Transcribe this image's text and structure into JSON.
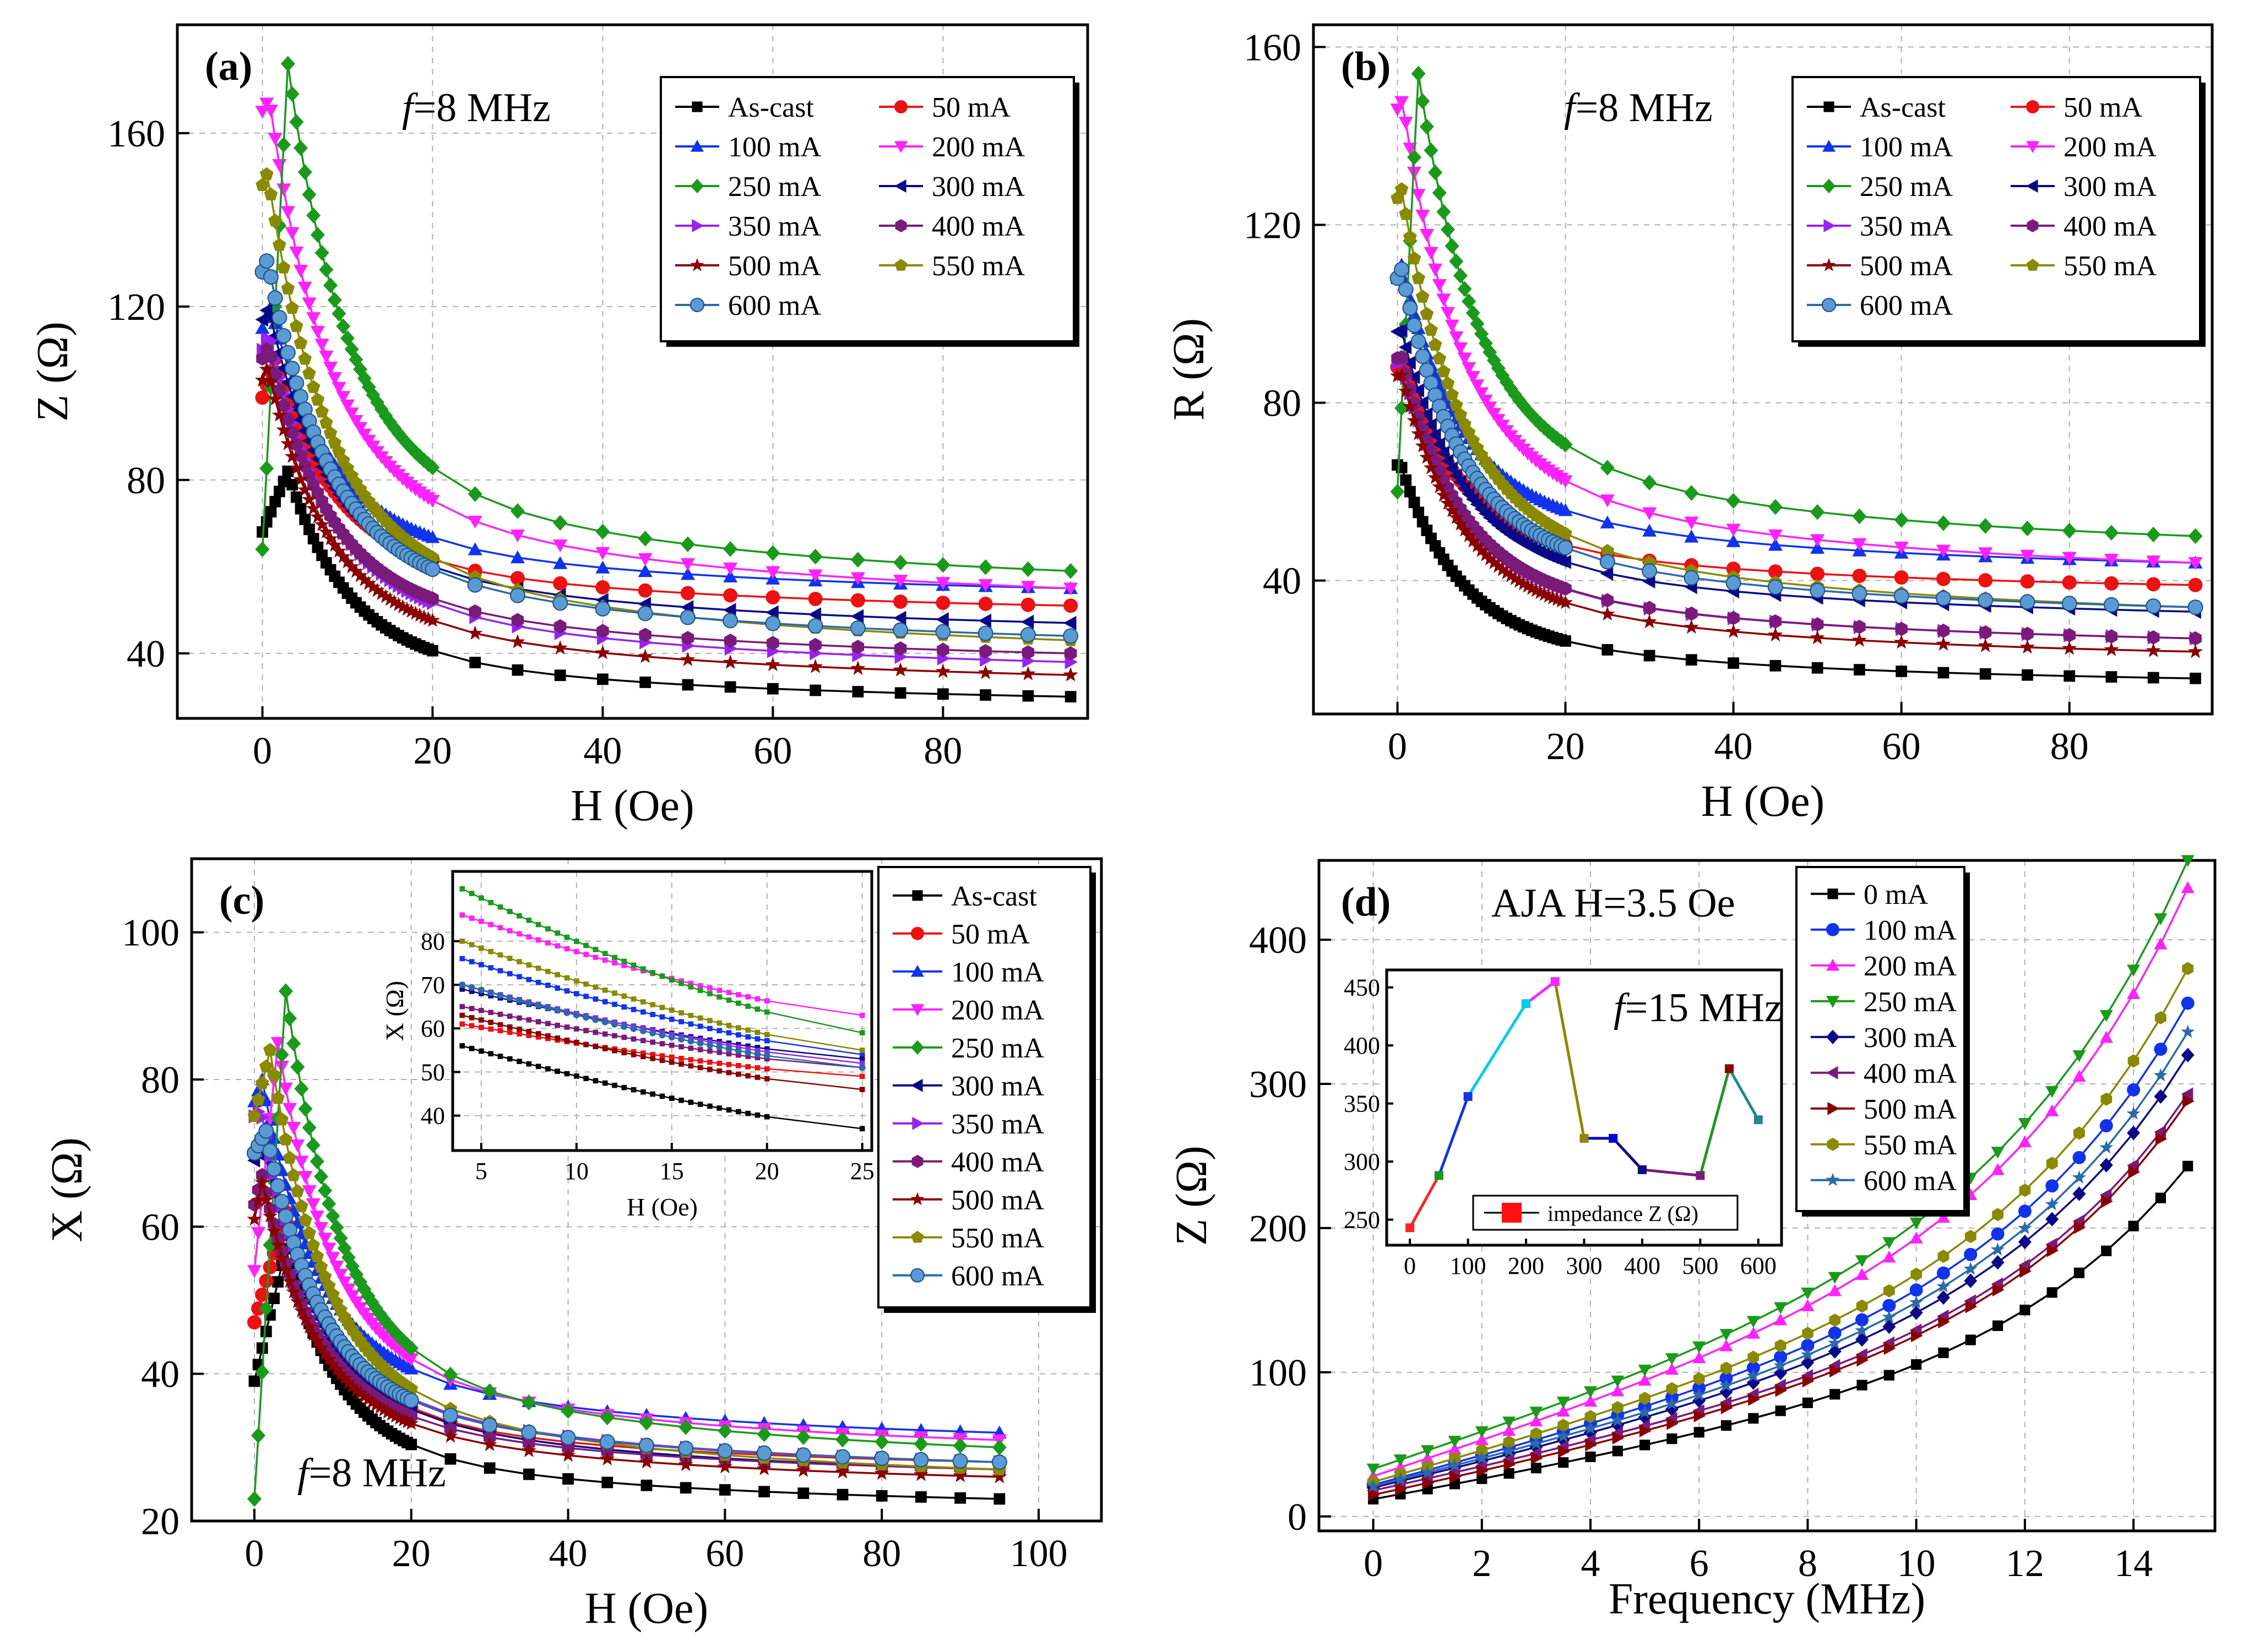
{
  "palette": {
    "As-cast": "#000000",
    "0 mA": "#000000",
    "50 mA": "#ee1111",
    "100 mA": "#1133ee",
    "200 mA": "#ff22ff",
    "250 mA": "#1a9a1a",
    "300 mA": "#0a0a88",
    "350 mA": "#9922ee",
    "400 mA": "#7a1a7a",
    "500 mA": "#8b0000",
    "550 mA": "#8a8a00",
    "600 mA": "#2a6aaa"
  },
  "chart_data": [
    {
      "type": "line",
      "id": "a",
      "panel_label": "(a)",
      "annotation": {
        "f": "f",
        "rest": "=8 MHz"
      },
      "xlabel": "H (Oe)",
      "ylabel": "Z (Ω)",
      "xlim": [
        -10,
        97
      ],
      "ylim": [
        25,
        185
      ],
      "xticks": [
        0,
        20,
        40,
        60,
        80
      ],
      "yticks": [
        40,
        80,
        120,
        160
      ],
      "legend_columns": 2,
      "series": [
        {
          "name": "As-cast",
          "marker": "square",
          "z0": 68,
          "peak": 82,
          "hk": 3,
          "z95": 30
        },
        {
          "name": "50 mA",
          "marker": "circle",
          "z0": 99,
          "peak": 108,
          "hk": 1.5,
          "z95": 51
        },
        {
          "name": "100 mA",
          "marker": "triangle-up",
          "z0": 115,
          "peak": 120,
          "hk": 1,
          "z95": 55
        },
        {
          "name": "200 mA",
          "marker": "triangle-down",
          "z0": 165,
          "peak": 168,
          "hk": 0.8,
          "z95": 55
        },
        {
          "name": "250 mA",
          "marker": "diamond",
          "z0": 64,
          "peak": 176,
          "hk": 3,
          "z95": 59
        },
        {
          "name": "300 mA",
          "marker": "triangle-left",
          "z0": 117,
          "peak": 120,
          "hk": 0.7,
          "z95": 47
        },
        {
          "name": "350 mA",
          "marker": "triangle-right",
          "z0": 110,
          "peak": 114,
          "hk": 0.8,
          "z95": 38
        },
        {
          "name": "400 mA",
          "marker": "hexagon",
          "z0": 108,
          "peak": 111,
          "hk": 0.7,
          "z95": 40
        },
        {
          "name": "500 mA",
          "marker": "star",
          "z0": 103,
          "peak": 106,
          "hk": 0.6,
          "z95": 35
        },
        {
          "name": "550 mA",
          "marker": "pentagon",
          "z0": 148,
          "peak": 151,
          "hk": 0.6,
          "z95": 43
        },
        {
          "name": "600 mA",
          "marker": "sphere",
          "z0": 128,
          "peak": 131,
          "hk": 0.6,
          "z95": 44
        }
      ]
    },
    {
      "type": "line",
      "id": "b",
      "panel_label": "(b)",
      "annotation": {
        "f": "f",
        "rest": "=8 MHz"
      },
      "xlabel": "H (Oe)",
      "ylabel": "R (Ω)",
      "xlim": [
        -10,
        97
      ],
      "ylim": [
        10,
        165
      ],
      "xticks": [
        0,
        20,
        40,
        60,
        80
      ],
      "yticks": [
        40,
        80,
        120,
        160
      ],
      "legend_columns": 2,
      "series": [
        {
          "name": "As-cast",
          "marker": "square",
          "z0": 66,
          "peak": 66,
          "hk": 0.4,
          "z95": 18
        },
        {
          "name": "50 mA",
          "marker": "circle",
          "z0": 88,
          "peak": 90,
          "hk": 0.5,
          "z95": 39
        },
        {
          "name": "100 mA",
          "marker": "triangle-up",
          "z0": 108,
          "peak": 111,
          "hk": 0.5,
          "z95": 44
        },
        {
          "name": "200 mA",
          "marker": "triangle-down",
          "z0": 146,
          "peak": 148,
          "hk": 0.6,
          "z95": 44
        },
        {
          "name": "250 mA",
          "marker": "diamond",
          "z0": 60,
          "peak": 154,
          "hk": 2.5,
          "z95": 50
        },
        {
          "name": "300 mA",
          "marker": "triangle-left",
          "z0": 96,
          "peak": 97,
          "hk": 0.4,
          "z95": 33
        },
        {
          "name": "350 mA",
          "marker": "triangle-right",
          "z0": 89,
          "peak": 90,
          "hk": 0.4,
          "z95": 27
        },
        {
          "name": "400 mA",
          "marker": "hexagon",
          "z0": 90,
          "peak": 91,
          "hk": 0.4,
          "z95": 27
        },
        {
          "name": "500 mA",
          "marker": "star",
          "z0": 86,
          "peak": 87,
          "hk": 0.4,
          "z95": 24
        },
        {
          "name": "550 mA",
          "marker": "pentagon",
          "z0": 126,
          "peak": 128,
          "hk": 0.5,
          "z95": 34
        },
        {
          "name": "600 mA",
          "marker": "sphere",
          "z0": 108,
          "peak": 110,
          "hk": 0.5,
          "z95": 34
        }
      ]
    },
    {
      "type": "line",
      "id": "c",
      "panel_label": "(c)",
      "annotation": {
        "f": "f",
        "rest": "=8 MHz"
      },
      "xlabel": "H (Oe)",
      "ylabel": "X (Ω)",
      "xlim": [
        -8,
        108
      ],
      "ylim": [
        20,
        110
      ],
      "xticks": [
        0,
        20,
        40,
        60,
        80,
        100
      ],
      "yticks": [
        20,
        40,
        60,
        80,
        100
      ],
      "legend_columns": 1,
      "series": [
        {
          "name": "As-cast",
          "marker": "square",
          "z0": 39,
          "peak": 57,
          "hk": 4,
          "z95": 23
        },
        {
          "name": "50 mA",
          "marker": "circle",
          "z0": 47,
          "peak": 62,
          "hk": 4,
          "z95": 28
        },
        {
          "name": "100 mA",
          "marker": "triangle-up",
          "z0": 77,
          "peak": 80,
          "hk": 1,
          "z95": 32
        },
        {
          "name": "200 mA",
          "marker": "triangle-down",
          "z0": 54,
          "peak": 85,
          "hk": 3,
          "z95": 31
        },
        {
          "name": "250 mA",
          "marker": "diamond",
          "z0": 23,
          "peak": 92,
          "hk": 4,
          "z95": 30
        },
        {
          "name": "300 mA",
          "marker": "triangle-left",
          "z0": 69,
          "peak": 72,
          "hk": 1,
          "z95": 27
        },
        {
          "name": "350 mA",
          "marker": "triangle-right",
          "z0": 75,
          "peak": 76,
          "hk": 0.8,
          "z95": 28
        },
        {
          "name": "400 mA",
          "marker": "hexagon",
          "z0": 63,
          "peak": 67,
          "hk": 1,
          "z95": 27
        },
        {
          "name": "500 mA",
          "marker": "star",
          "z0": 61,
          "peak": 66,
          "hk": 1,
          "z95": 26
        },
        {
          "name": "550 mA",
          "marker": "pentagon",
          "z0": 75,
          "peak": 84,
          "hk": 2,
          "z95": 27
        },
        {
          "name": "600 mA",
          "marker": "sphere",
          "z0": 70,
          "peak": 73,
          "hk": 1.5,
          "z95": 28
        }
      ],
      "inset": {
        "xlabel": "H (Oe)",
        "ylabel": "X (Ω)",
        "xlim": [
          3.5,
          25.5
        ],
        "ylim": [
          32,
          96
        ],
        "xticks": [
          5,
          10,
          15,
          20,
          25
        ],
        "yticks": [
          40,
          50,
          60,
          70,
          80
        ],
        "series": [
          {
            "name": "As-cast",
            "v4": 56,
            "v25": 37
          },
          {
            "name": "50 mA",
            "v4": 61,
            "v25": 49
          },
          {
            "name": "100 mA",
            "v4": 76,
            "v25": 54
          },
          {
            "name": "200 mA",
            "v4": 86,
            "v25": 63
          },
          {
            "name": "250 mA",
            "v4": 92,
            "v25": 59
          },
          {
            "name": "300 mA",
            "v4": 69,
            "v25": 53
          },
          {
            "name": "350 mA",
            "v4": 70,
            "v25": 52
          },
          {
            "name": "400 mA",
            "v4": 65,
            "v25": 51
          },
          {
            "name": "500 mA",
            "v4": 63,
            "v25": 46
          },
          {
            "name": "550 mA",
            "v4": 80,
            "v25": 55
          },
          {
            "name": "600 mA",
            "v4": 70,
            "v25": 51
          }
        ]
      }
    },
    {
      "type": "line",
      "id": "d",
      "panel_label": "(d)",
      "annotation": {
        "text": "AJA  H=3.5 Oe"
      },
      "xlabel": "Frequency (MHz)",
      "ylabel": "Z (Ω)",
      "xlim": [
        -1,
        15.5
      ],
      "ylim": [
        -10,
        455
      ],
      "xticks": [
        0,
        2,
        4,
        6,
        8,
        10,
        12,
        14
      ],
      "yticks": [
        0,
        100,
        200,
        300,
        400
      ],
      "legend_columns": 1,
      "series": [
        {
          "name": "0 mA",
          "marker": "square",
          "z0": 12,
          "z15": 243
        },
        {
          "name": "100 mA",
          "marker": "circle",
          "z0": 22,
          "z15": 356
        },
        {
          "name": "200 mA",
          "marker": "triangle-up",
          "z0": 28,
          "z15": 436
        },
        {
          "name": "250 mA",
          "marker": "triangle-down",
          "z0": 33,
          "z15": 455
        },
        {
          "name": "300 mA",
          "marker": "diamond",
          "z0": 20,
          "z15": 320
        },
        {
          "name": "400 mA",
          "marker": "triangle-left",
          "z0": 18,
          "z15": 293
        },
        {
          "name": "500 mA",
          "marker": "triangle-right",
          "z0": 15,
          "z15": 288
        },
        {
          "name": "550 mA",
          "marker": "hexagon",
          "z0": 24,
          "z15": 380
        },
        {
          "name": "600 mA",
          "marker": "star",
          "z0": 21,
          "z15": 336
        }
      ],
      "inset": {
        "annotation": {
          "f": "f",
          "rest": "=15 MHz"
        },
        "legend": "impedance Z (Ω)",
        "xlim": [
          -40,
          640
        ],
        "ylim": [
          228,
          465
        ],
        "xticks": [
          0,
          100,
          200,
          300,
          400,
          500,
          600
        ],
        "yticks": [
          250,
          300,
          350,
          400,
          450
        ],
        "x": [
          0,
          50,
          100,
          200,
          250,
          300,
          350,
          400,
          500,
          550,
          600
        ],
        "y": [
          243,
          288,
          356,
          436,
          455,
          320,
          320,
          293,
          288,
          380,
          336
        ],
        "segment_colors": [
          "#ff2222",
          "#1133ee",
          "#00ccee",
          "#ff22ff",
          "#8a8a00",
          "#0000cc",
          "#0a0a88",
          "#7a1a7a",
          "#1a9a1a",
          "#1a8a8a"
        ]
      }
    }
  ]
}
